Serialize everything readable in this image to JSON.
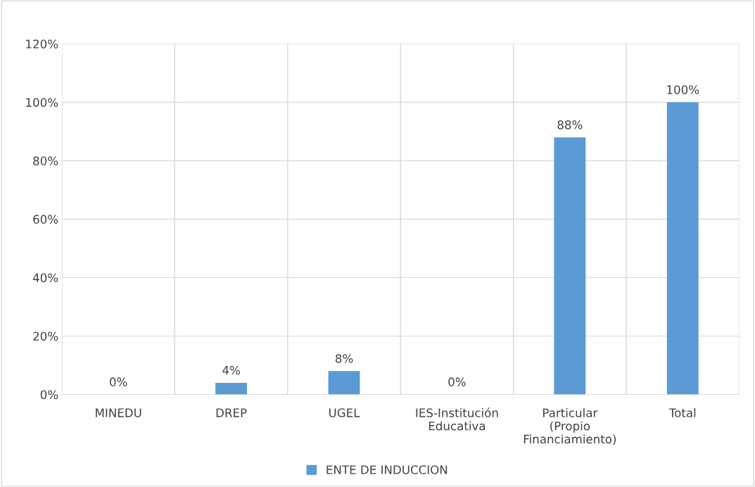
{
  "chart_data": {
    "type": "bar",
    "categories": [
      "MINEDU",
      "DREP",
      "UGEL",
      "IES-Institución\nEducativa",
      "Particular\n(Propio\nFinanciamiento)",
      "Total"
    ],
    "series": [
      {
        "name": "ENTE DE INDUCCION",
        "color": "#5b9bd5",
        "values": [
          0,
          4,
          8,
          0,
          88,
          100
        ],
        "value_labels": [
          "0%",
          "4%",
          "8%",
          "0%",
          "88%",
          "100%"
        ]
      }
    ],
    "ylim": [
      0,
      120
    ],
    "yticks": [
      {
        "value": 0,
        "label": "0%"
      },
      {
        "value": 20,
        "label": "20%"
      },
      {
        "value": 40,
        "label": "40%"
      },
      {
        "value": 60,
        "label": "60%"
      },
      {
        "value": 80,
        "label": "80%"
      },
      {
        "value": 100,
        "label": "100%"
      },
      {
        "value": 120,
        "label": "120%"
      }
    ],
    "grid": true,
    "legend": "bottom"
  }
}
